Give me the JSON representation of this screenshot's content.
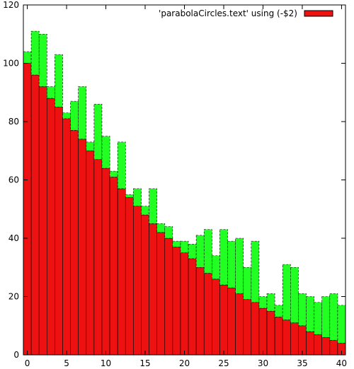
{
  "chart_data": {
    "type": "bar",
    "stacked": true,
    "title": "",
    "xlabel": "",
    "ylabel": "",
    "xlim": [
      -0.5,
      40.5
    ],
    "ylim": [
      0,
      120
    ],
    "xticks": [
      0,
      5,
      10,
      15,
      20,
      25,
      30,
      35,
      40
    ],
    "yticks": [
      0,
      20,
      40,
      60,
      80,
      100,
      120
    ],
    "grid": false,
    "legend_position": "top-right",
    "x": [
      0,
      1,
      2,
      3,
      4,
      5,
      6,
      7,
      8,
      9,
      10,
      11,
      12,
      13,
      14,
      15,
      16,
      17,
      18,
      19,
      20,
      21,
      22,
      23,
      24,
      25,
      26,
      27,
      28,
      29,
      30,
      31,
      32,
      33,
      34,
      35,
      36,
      37,
      38,
      39,
      40
    ],
    "series": [
      {
        "name": "'parabolaCircles.text' using (-$2)",
        "color": "#ee1111",
        "values": [
          100,
          96,
          92,
          88,
          85,
          81,
          77,
          74,
          70,
          67,
          64,
          61,
          57,
          54,
          51,
          48,
          45,
          42,
          40,
          37,
          35,
          33,
          30,
          28,
          26,
          24,
          23,
          21,
          19,
          18,
          16,
          15,
          13,
          12,
          11,
          10,
          8,
          7,
          6,
          5,
          4
        ]
      },
      {
        "name": "",
        "color": "#22ff22",
        "values": [
          4,
          15,
          18,
          4,
          18,
          2,
          10,
          18,
          3,
          19,
          11,
          2,
          16,
          1,
          6,
          3,
          12,
          3,
          4,
          2,
          4,
          5,
          11,
          15,
          8,
          19,
          16,
          19,
          11,
          21,
          4,
          6,
          4,
          19,
          19,
          11,
          12,
          11,
          14,
          16,
          13
        ]
      }
    ]
  }
}
